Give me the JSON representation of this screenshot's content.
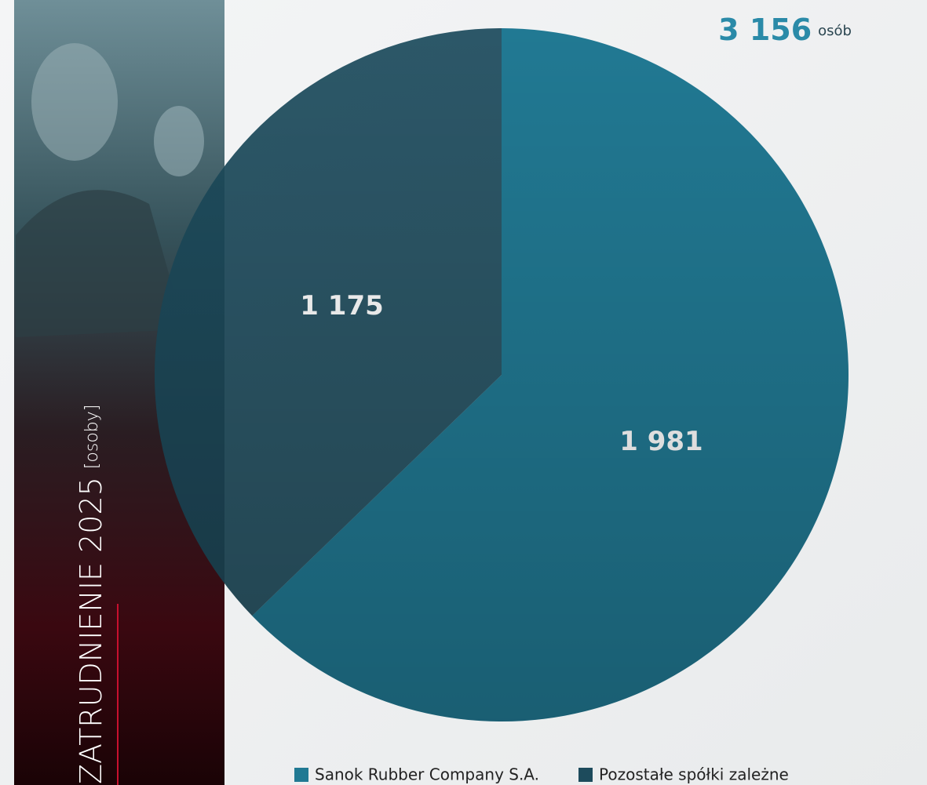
{
  "chart_data": {
    "type": "pie",
    "title": "ZATRUDNIENIE 2025",
    "subtitle": "[osoby]",
    "total": {
      "value": 3156,
      "label": "3 156"
    },
    "total_unit": "osób",
    "categories": [
      "Sanok Rubber Company S.A.",
      "Pozostałe spółki zależne"
    ],
    "values": [
      1981,
      1175
    ],
    "value_labels": [
      "1 981",
      "1 175"
    ],
    "colors": [
      "#217993",
      "#1d4b5c"
    ]
  }
}
